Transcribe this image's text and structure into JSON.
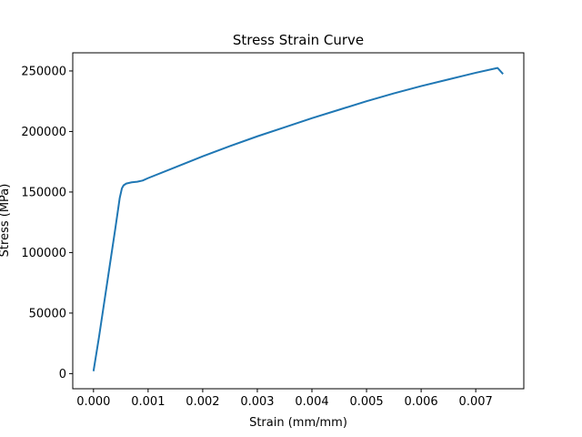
{
  "chart_data": {
    "type": "line",
    "title": "Stress Strain Curve",
    "xlabel": "Strain (mm/mm)",
    "ylabel": "Stress (MPa)",
    "xlim": [
      -0.00038,
      0.00788
    ],
    "ylim": [
      -12500,
      265000
    ],
    "x_ticks": [
      0.0,
      0.001,
      0.002,
      0.003,
      0.004,
      0.005,
      0.006,
      0.007
    ],
    "x_tick_labels": [
      "0.000",
      "0.001",
      "0.002",
      "0.003",
      "0.004",
      "0.005",
      "0.006",
      "0.007"
    ],
    "y_ticks": [
      0,
      50000,
      100000,
      150000,
      200000,
      250000
    ],
    "y_tick_labels": [
      "0",
      "50000",
      "100000",
      "150000",
      "200000",
      "250000"
    ],
    "grid": false,
    "legend": "none",
    "series": [
      {
        "color": "#1f77b4",
        "x": [
          0.0,
          0.0001,
          0.0002,
          0.0003,
          0.0004,
          0.00048,
          0.00052,
          0.00055,
          0.0006,
          0.0007,
          0.0008,
          0.0009,
          0.001,
          0.0015,
          0.002,
          0.0025,
          0.003,
          0.0035,
          0.004,
          0.0045,
          0.005,
          0.0055,
          0.006,
          0.0065,
          0.007,
          0.0074,
          0.0075
        ],
        "y": [
          2000,
          30000,
          60000,
          90000,
          120000,
          145000,
          153000,
          155500,
          157000,
          158000,
          158500,
          159500,
          161500,
          170500,
          179500,
          188000,
          196000,
          203500,
          211000,
          218000,
          225000,
          231500,
          237500,
          243000,
          248500,
          252500,
          247500
        ]
      }
    ]
  }
}
